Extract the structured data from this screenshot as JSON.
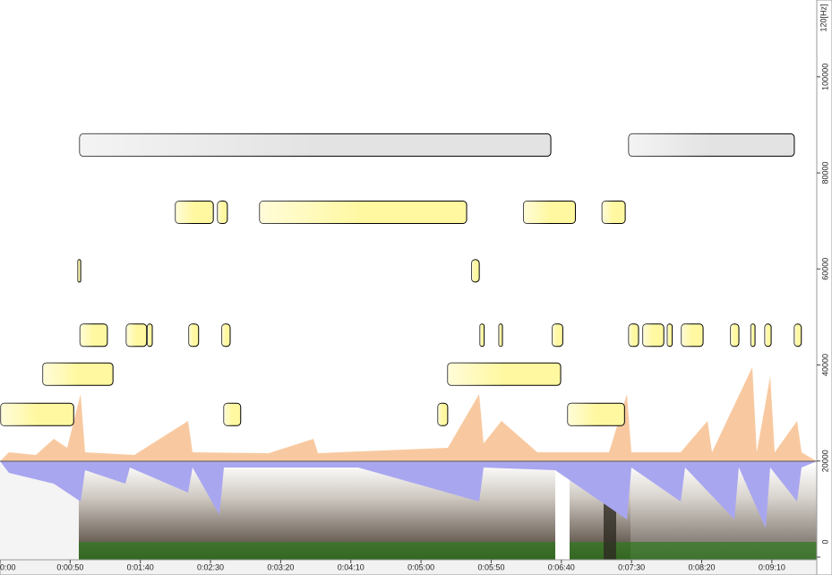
{
  "chart_data": {
    "type": "timeline",
    "xlim": [
      0,
      582
    ],
    "xticks": [
      {
        "value": 0,
        "label": "0:00"
      },
      {
        "value": 50,
        "label": "0:00:50"
      },
      {
        "value": 100,
        "label": "0:01:40"
      },
      {
        "value": 150,
        "label": "0:02:30"
      },
      {
        "value": 200,
        "label": "0:03:20"
      },
      {
        "value": 250,
        "label": "0:04:10"
      },
      {
        "value": 300,
        "label": "0:05:00"
      },
      {
        "value": 350,
        "label": "0:05:50"
      },
      {
        "value": 400,
        "label": "0:06:40"
      },
      {
        "value": 450,
        "label": "0:07:30"
      },
      {
        "value": 500,
        "label": "0:08:20"
      },
      {
        "value": 550,
        "label": "0:09:10"
      }
    ],
    "ylim": [
      0,
      116000
    ],
    "yticks": [
      0,
      20000,
      40000,
      60000,
      80000,
      100000
    ],
    "y_unit_label": "120[Hz]",
    "lanes": [
      {
        "level": 85800,
        "color": "#e3e3e3",
        "regions": [
          [
            56.8,
            392.5
          ],
          [
            448,
            566
          ]
        ]
      },
      {
        "level": 71800,
        "color": "#fff8a0",
        "regions": [
          [
            125,
            152
          ],
          [
            155,
            162
          ],
          [
            185,
            332.5
          ],
          [
            373,
            410
          ],
          [
            429,
            445.5
          ]
        ]
      },
      {
        "level": 59600,
        "color": "#fff8a0",
        "regions": [
          [
            55.5,
            57.5
          ],
          [
            336,
            341.5
          ]
        ]
      },
      {
        "level": 46200,
        "color": "#fff8a0",
        "regions": [
          [
            57,
            76.5
          ],
          [
            90,
            104.5
          ],
          [
            105,
            108.5
          ],
          [
            134.5,
            141.5
          ],
          [
            158,
            164
          ],
          [
            342,
            345
          ],
          [
            355.5,
            358
          ],
          [
            393.5,
            401
          ],
          [
            448,
            455
          ],
          [
            458,
            473
          ],
          [
            475.5,
            479
          ],
          [
            485.5,
            501
          ],
          [
            520.5,
            526.5
          ],
          [
            535,
            538
          ],
          [
            545,
            549.5
          ],
          [
            566,
            571
          ]
        ]
      },
      {
        "level": 38100,
        "color": "#fff8a0",
        "regions": [
          [
            30.5,
            80.5
          ],
          [
            319,
            399.5
          ]
        ]
      },
      {
        "level": 29700,
        "color": "#fff8a0",
        "regions": [
          [
            0.5,
            52.5
          ],
          [
            159.5,
            171.5
          ],
          [
            312,
            319
          ],
          [
            404.5,
            445
          ]
        ]
      }
    ]
  }
}
